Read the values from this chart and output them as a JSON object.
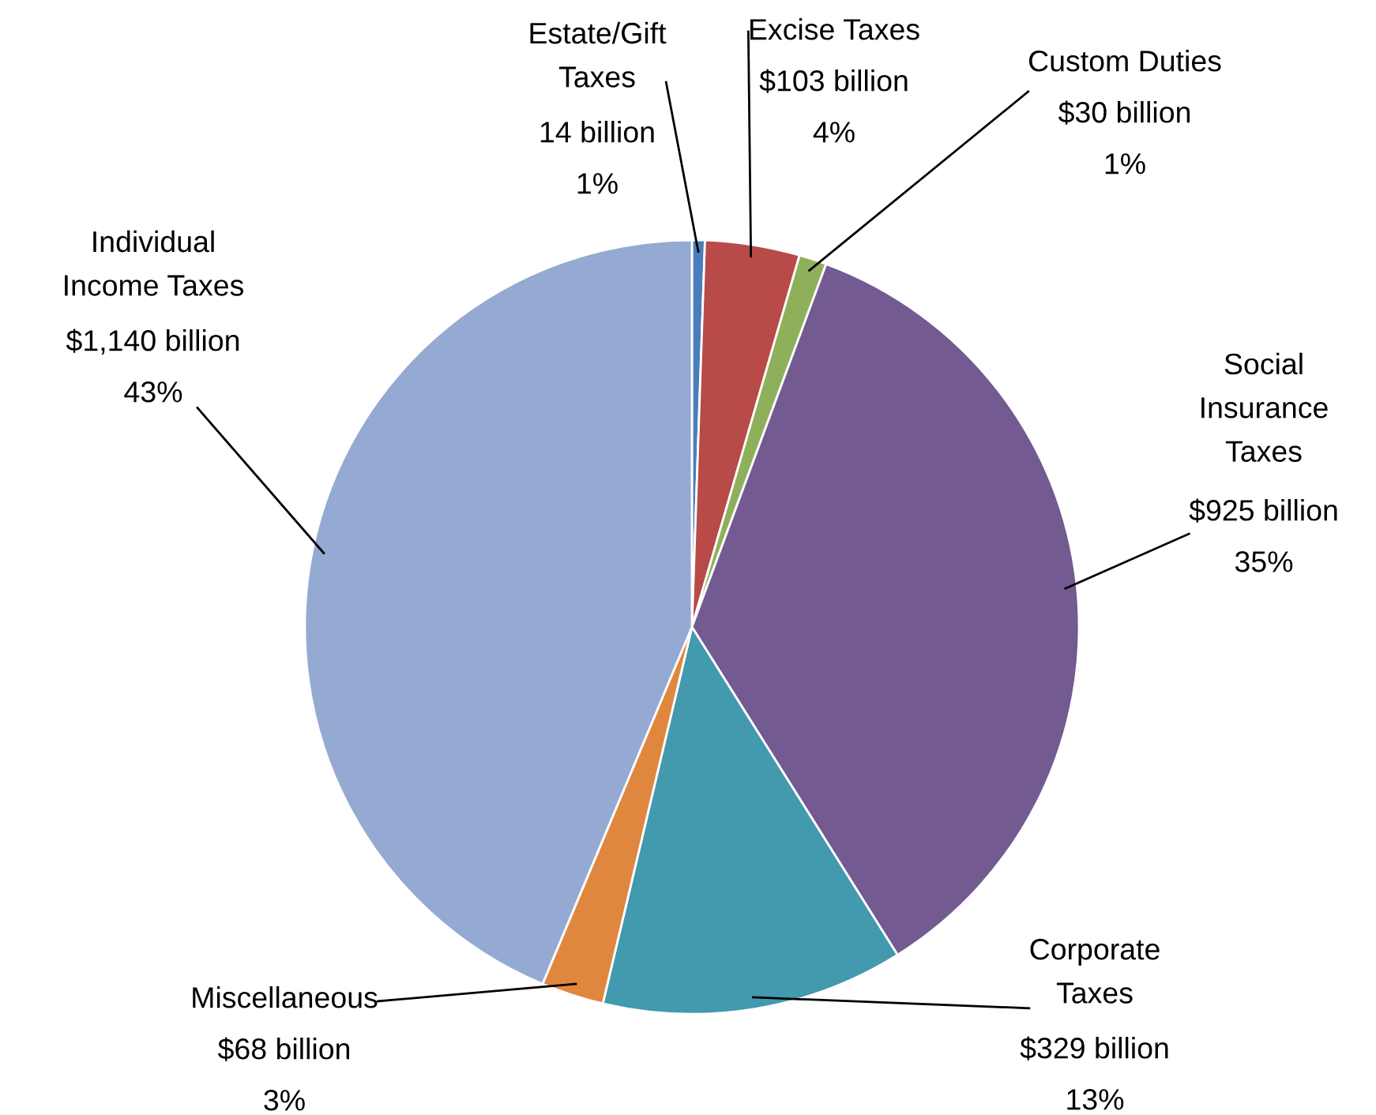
{
  "chart_data": {
    "type": "pie",
    "categories": [
      "Estate/Gift\nTaxes",
      "Excise Taxes",
      "Custom Duties",
      "Social\nInsurance\nTaxes",
      "Corporate\nTaxes",
      "Miscellaneous",
      "Individual\nIncome Taxes"
    ],
    "values": [
      14,
      103,
      30,
      925,
      329,
      68,
      1140
    ],
    "value_labels": [
      "14 billion",
      "$103 billion",
      "$30 billion",
      "$925 billion",
      "$329 billion",
      "$68 billion",
      "$1,140 billion"
    ],
    "annotations": [
      "1%",
      "4%",
      "1%",
      "35%",
      "13%",
      "3%",
      "43%"
    ],
    "colors": [
      "#4a7ebb",
      "#b84a48",
      "#8fb05a",
      "#735a91",
      "#4399ae",
      "#e0873f",
      "#95aad2"
    ],
    "legend": false
  }
}
